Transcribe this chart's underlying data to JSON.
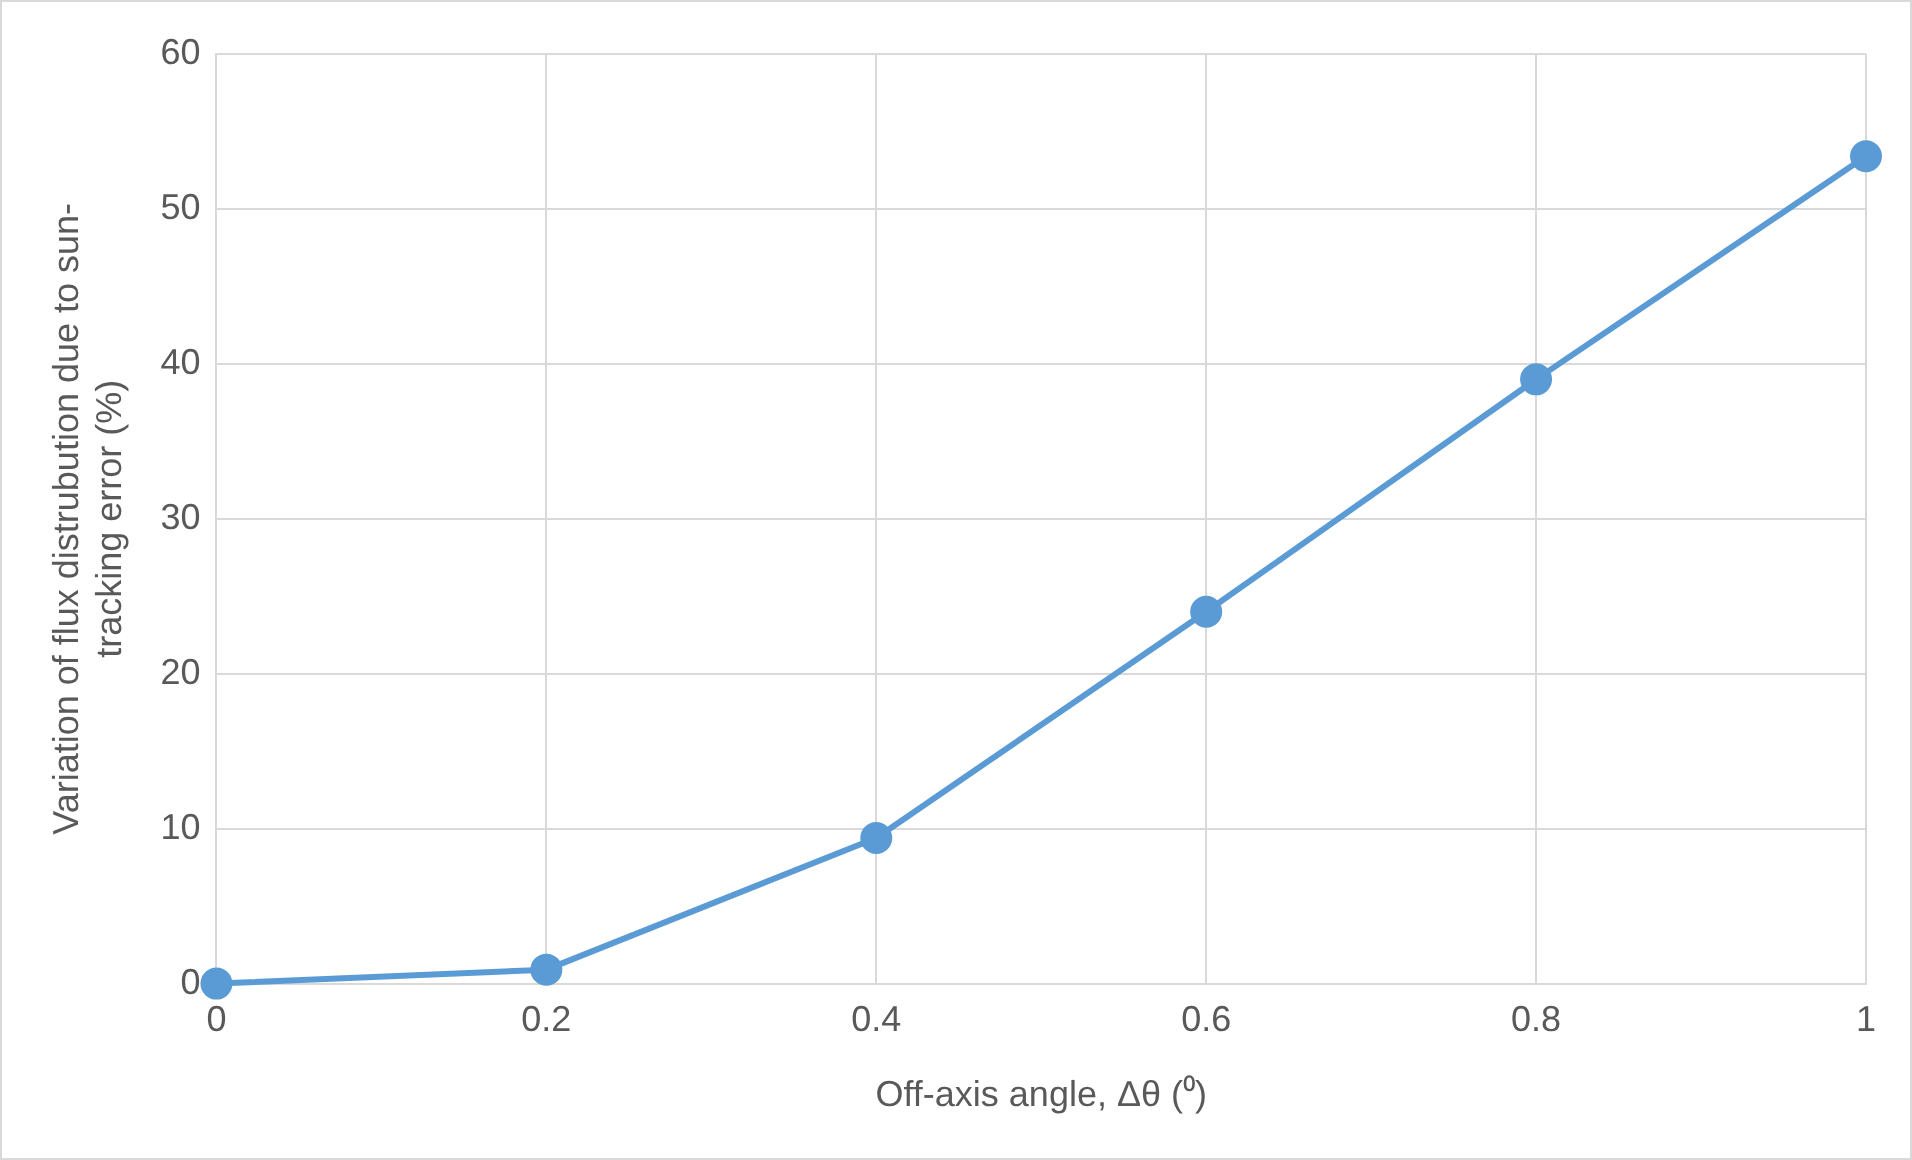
{
  "chart_data": {
    "type": "line",
    "xlabel": "Off-axis angle, Δθ (⁰)",
    "ylabel": "Variation of flux distrubution due to sun-tracking error (%)",
    "x": [
      0,
      0.2,
      0.4,
      0.6,
      0.8,
      1
    ],
    "series": [
      {
        "color": "#5b9bd5",
        "values": [
          0,
          0.9,
          9.4,
          24,
          39,
          53.4
        ]
      }
    ],
    "xlim": [
      0,
      1
    ],
    "xticks": [
      0,
      0.2,
      0.4,
      0.6,
      0.8,
      1
    ],
    "ylim": [
      0,
      60
    ],
    "yticks": [
      0,
      10,
      20,
      30,
      40,
      50,
      60
    ],
    "grid": true,
    "legend": false,
    "marker": "circle",
    "line_style": "solid"
  }
}
